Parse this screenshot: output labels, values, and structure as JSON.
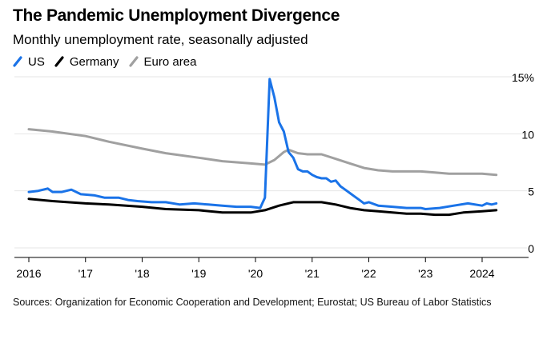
{
  "header": {
    "title": "The Pandemic Unemployment Divergence",
    "subtitle": "Monthly unemployment rate, seasonally adjusted"
  },
  "legend": [
    {
      "label": "US",
      "color": "#1a73e8"
    },
    {
      "label": "Germany",
      "color": "#000000"
    },
    {
      "label": "Euro area",
      "color": "#a0a0a0"
    }
  ],
  "source": "Sources: Organization for Economic Cooperation and Development; Eurostat; US Bureau of Labor Statistics",
  "chart_data": {
    "type": "line",
    "title": "The Pandemic Unemployment Divergence",
    "subtitle": "Monthly unemployment rate, seasonally adjusted",
    "x_label": "",
    "y_label": "",
    "x_range": [
      "2016-01",
      "2024-04"
    ],
    "y_range": [
      0,
      15
    ],
    "y_ticks": [
      {
        "value": 15,
        "label": "15%"
      },
      {
        "value": 10,
        "label": "10"
      },
      {
        "value": 5,
        "label": "5"
      },
      {
        "value": 0,
        "label": "0"
      }
    ],
    "x_ticks": [
      {
        "date": "2016-01",
        "label": "2016"
      },
      {
        "date": "2017-01",
        "label": "'17"
      },
      {
        "date": "2018-01",
        "label": "'18"
      },
      {
        "date": "2019-01",
        "label": "'19"
      },
      {
        "date": "2020-01",
        "label": "'20"
      },
      {
        "date": "2021-01",
        "label": "'21"
      },
      {
        "date": "2022-01",
        "label": "'22"
      },
      {
        "date": "2023-01",
        "label": "'23"
      },
      {
        "date": "2024-01",
        "label": "2024"
      }
    ],
    "y_axis_position": "right",
    "grid": "horizontal",
    "legend_position": "top-left",
    "series": [
      {
        "name": "US",
        "color": "#1a73e8",
        "points": [
          [
            "2016-01",
            4.9
          ],
          [
            "2016-03",
            5.0
          ],
          [
            "2016-05",
            5.2
          ],
          [
            "2016-06",
            4.9
          ],
          [
            "2016-08",
            4.9
          ],
          [
            "2016-10",
            5.1
          ],
          [
            "2016-12",
            4.7
          ],
          [
            "2017-03",
            4.6
          ],
          [
            "2017-05",
            4.4
          ],
          [
            "2017-08",
            4.4
          ],
          [
            "2017-10",
            4.2
          ],
          [
            "2017-12",
            4.1
          ],
          [
            "2018-03",
            4.0
          ],
          [
            "2018-06",
            4.0
          ],
          [
            "2018-09",
            3.8
          ],
          [
            "2018-12",
            3.9
          ],
          [
            "2019-03",
            3.8
          ],
          [
            "2019-06",
            3.7
          ],
          [
            "2019-09",
            3.6
          ],
          [
            "2019-12",
            3.6
          ],
          [
            "2020-02",
            3.5
          ],
          [
            "2020-03",
            4.4
          ],
          [
            "2020-04",
            14.8
          ],
          [
            "2020-05",
            13.2
          ],
          [
            "2020-06",
            11.0
          ],
          [
            "2020-07",
            10.2
          ],
          [
            "2020-08",
            8.4
          ],
          [
            "2020-09",
            7.9
          ],
          [
            "2020-10",
            6.9
          ],
          [
            "2020-11",
            6.7
          ],
          [
            "2020-12",
            6.7
          ],
          [
            "2021-01",
            6.4
          ],
          [
            "2021-02",
            6.2
          ],
          [
            "2021-03",
            6.1
          ],
          [
            "2021-04",
            6.1
          ],
          [
            "2021-05",
            5.8
          ],
          [
            "2021-06",
            5.9
          ],
          [
            "2021-07",
            5.4
          ],
          [
            "2021-08",
            5.1
          ],
          [
            "2021-09",
            4.8
          ],
          [
            "2021-10",
            4.5
          ],
          [
            "2021-11",
            4.2
          ],
          [
            "2021-12",
            3.9
          ],
          [
            "2022-01",
            4.0
          ],
          [
            "2022-03",
            3.7
          ],
          [
            "2022-06",
            3.6
          ],
          [
            "2022-09",
            3.5
          ],
          [
            "2022-12",
            3.5
          ],
          [
            "2023-01",
            3.4
          ],
          [
            "2023-04",
            3.5
          ],
          [
            "2023-07",
            3.7
          ],
          [
            "2023-10",
            3.9
          ],
          [
            "2024-01",
            3.7
          ],
          [
            "2024-02",
            3.9
          ],
          [
            "2024-03",
            3.8
          ],
          [
            "2024-04",
            3.9
          ]
        ]
      },
      {
        "name": "Germany",
        "color": "#000000",
        "points": [
          [
            "2016-01",
            4.3
          ],
          [
            "2016-06",
            4.1
          ],
          [
            "2017-01",
            3.9
          ],
          [
            "2017-06",
            3.8
          ],
          [
            "2018-01",
            3.6
          ],
          [
            "2018-06",
            3.4
          ],
          [
            "2019-01",
            3.3
          ],
          [
            "2019-06",
            3.1
          ],
          [
            "2019-12",
            3.1
          ],
          [
            "2020-03",
            3.3
          ],
          [
            "2020-06",
            3.7
          ],
          [
            "2020-09",
            4.0
          ],
          [
            "2020-12",
            4.0
          ],
          [
            "2021-03",
            4.0
          ],
          [
            "2021-06",
            3.8
          ],
          [
            "2021-09",
            3.5
          ],
          [
            "2021-12",
            3.3
          ],
          [
            "2022-03",
            3.2
          ],
          [
            "2022-06",
            3.1
          ],
          [
            "2022-09",
            3.0
          ],
          [
            "2022-12",
            3.0
          ],
          [
            "2023-03",
            2.9
          ],
          [
            "2023-06",
            2.9
          ],
          [
            "2023-09",
            3.1
          ],
          [
            "2024-01",
            3.2
          ],
          [
            "2024-04",
            3.3
          ]
        ]
      },
      {
        "name": "Euro area",
        "color": "#a0a0a0",
        "points": [
          [
            "2016-01",
            10.4
          ],
          [
            "2016-06",
            10.2
          ],
          [
            "2017-01",
            9.8
          ],
          [
            "2017-06",
            9.3
          ],
          [
            "2018-01",
            8.7
          ],
          [
            "2018-06",
            8.3
          ],
          [
            "2019-01",
            7.9
          ],
          [
            "2019-06",
            7.6
          ],
          [
            "2019-12",
            7.4
          ],
          [
            "2020-03",
            7.3
          ],
          [
            "2020-05",
            7.7
          ],
          [
            "2020-07",
            8.4
          ],
          [
            "2020-08",
            8.6
          ],
          [
            "2020-10",
            8.3
          ],
          [
            "2020-12",
            8.2
          ],
          [
            "2021-03",
            8.2
          ],
          [
            "2021-06",
            7.8
          ],
          [
            "2021-09",
            7.4
          ],
          [
            "2021-12",
            7.0
          ],
          [
            "2022-03",
            6.8
          ],
          [
            "2022-06",
            6.7
          ],
          [
            "2022-12",
            6.7
          ],
          [
            "2023-03",
            6.6
          ],
          [
            "2023-06",
            6.5
          ],
          [
            "2023-09",
            6.5
          ],
          [
            "2024-01",
            6.5
          ],
          [
            "2024-04",
            6.4
          ]
        ]
      }
    ]
  }
}
